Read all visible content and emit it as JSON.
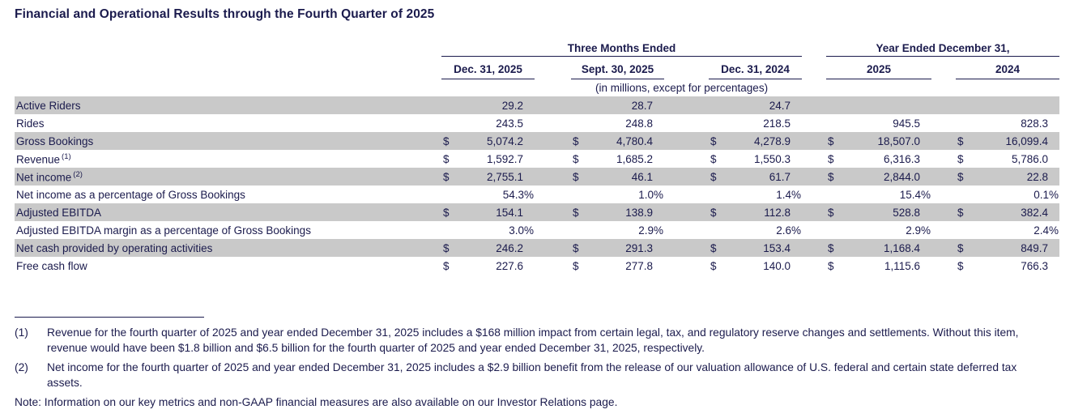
{
  "colors": {
    "accent": "#1b1b4d",
    "row_shade": "#c9c9c9"
  },
  "title": "Financial and Operational Results through the Fourth Quarter of 2025",
  "table": {
    "groups": [
      {
        "label": "Three Months Ended"
      },
      {
        "label": "Year Ended December 31,"
      }
    ],
    "columns": [
      "Dec. 31, 2025",
      "Sept. 30, 2025",
      "Dec. 31, 2024",
      "2025",
      "2024"
    ],
    "units_note": "(in millions, except for percentages)",
    "rows": [
      {
        "label": "Active Riders",
        "sup": "",
        "shaded": true,
        "cells": [
          [
            "",
            "29.2"
          ],
          [
            "",
            "28.7"
          ],
          [
            "",
            "24.7"
          ],
          [
            "",
            ""
          ],
          [
            "",
            ""
          ]
        ]
      },
      {
        "label": "Rides",
        "sup": "",
        "shaded": false,
        "cells": [
          [
            "",
            "243.5"
          ],
          [
            "",
            "248.8"
          ],
          [
            "",
            "218.5"
          ],
          [
            "",
            "945.5"
          ],
          [
            "",
            "828.3"
          ]
        ]
      },
      {
        "label": "Gross Bookings",
        "sup": "",
        "shaded": true,
        "cells": [
          [
            "$",
            "5,074.2"
          ],
          [
            "$",
            "4,780.4"
          ],
          [
            "$",
            "4,278.9"
          ],
          [
            "$",
            "18,507.0"
          ],
          [
            "$",
            "16,099.4"
          ]
        ]
      },
      {
        "label": "Revenue",
        "sup": "(1)",
        "shaded": false,
        "cells": [
          [
            "$",
            "1,592.7"
          ],
          [
            "$",
            "1,685.2"
          ],
          [
            "$",
            "1,550.3"
          ],
          [
            "$",
            "6,316.3"
          ],
          [
            "$",
            "5,786.0"
          ]
        ]
      },
      {
        "label": "Net income",
        "sup": "(2)",
        "shaded": true,
        "cells": [
          [
            "$",
            "2,755.1"
          ],
          [
            "$",
            "46.1"
          ],
          [
            "$",
            "61.7"
          ],
          [
            "$",
            "2,844.0"
          ],
          [
            "$",
            "22.8"
          ]
        ]
      },
      {
        "label": "Net income as a percentage of Gross Bookings",
        "sup": "",
        "shaded": false,
        "cells": [
          [
            "",
            "54.3%"
          ],
          [
            "",
            "1.0%"
          ],
          [
            "",
            "1.4%"
          ],
          [
            "",
            "15.4%"
          ],
          [
            "",
            "0.1%"
          ]
        ]
      },
      {
        "label": "Adjusted EBITDA",
        "sup": "",
        "shaded": true,
        "cells": [
          [
            "$",
            "154.1"
          ],
          [
            "$",
            "138.9"
          ],
          [
            "$",
            "112.8"
          ],
          [
            "$",
            "528.8"
          ],
          [
            "$",
            "382.4"
          ]
        ]
      },
      {
        "label": "Adjusted EBITDA margin as a percentage of Gross Bookings",
        "sup": "",
        "shaded": false,
        "cells": [
          [
            "",
            "3.0%"
          ],
          [
            "",
            "2.9%"
          ],
          [
            "",
            "2.6%"
          ],
          [
            "",
            "2.9%"
          ],
          [
            "",
            "2.4%"
          ]
        ]
      },
      {
        "label": "Net cash provided by operating activities",
        "sup": "",
        "shaded": true,
        "cells": [
          [
            "$",
            "246.2"
          ],
          [
            "$",
            "291.3"
          ],
          [
            "$",
            "153.4"
          ],
          [
            "$",
            "1,168.4"
          ],
          [
            "$",
            "849.7"
          ]
        ]
      },
      {
        "label": "Free cash flow",
        "sup": "",
        "shaded": false,
        "cells": [
          [
            "$",
            "227.6"
          ],
          [
            "$",
            "277.8"
          ],
          [
            "$",
            "140.0"
          ],
          [
            "$",
            "1,115.6"
          ],
          [
            "$",
            "766.3"
          ]
        ]
      }
    ]
  },
  "footnotes": [
    {
      "marker": "(1)",
      "text": "Revenue for the fourth quarter of 2025 and year ended December 31, 2025 includes a $168 million impact from certain legal, tax, and regulatory reserve changes and settlements. Without this item, revenue would have been $1.8 billion and $6.5 billion for the fourth quarter of 2025 and year ended December 31, 2025, respectively."
    },
    {
      "marker": "(2)",
      "text": "Net income for the fourth quarter of 2025 and year ended December 31, 2025 includes a $2.9 billion benefit from the release of our valuation allowance of U.S. federal and certain state deferred tax assets."
    }
  ],
  "note": "Note: Information on our key metrics and non-GAAP financial measures are also available on our Investor Relations page."
}
